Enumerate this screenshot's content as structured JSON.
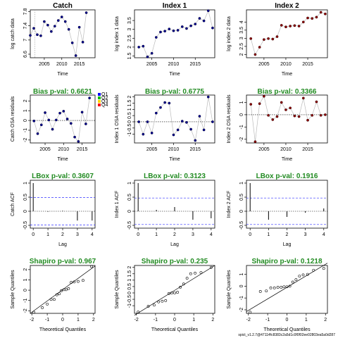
{
  "footer_text": "spict_v1.2.7@47114fc8383c2a5d1c0f0f02ee02803ea5a0d287",
  "chart_data": [
    {
      "type": "line",
      "title": "Catch",
      "xlabel": "Time",
      "ylabel": "log catch data",
      "xlim": [
        2001,
        2019.5
      ],
      "ylim": [
        6.5,
        7.85
      ],
      "xticks": [
        2005,
        2010,
        2015
      ],
      "yticks": [
        6.6,
        7.0,
        7.4,
        7.8
      ],
      "vline": 2002.3,
      "point_color": "#00008b",
      "x": [
        2001,
        2002,
        2003,
        2004,
        2005,
        2006,
        2007,
        2008,
        2009,
        2010,
        2011,
        2012,
        2013,
        2014,
        2015,
        2016,
        2017
      ],
      "y": [
        7.13,
        7.33,
        7.15,
        7.12,
        7.52,
        7.42,
        7.24,
        7.39,
        7.55,
        7.65,
        7.52,
        7.3,
        6.92,
        6.56,
        7.36,
        6.94,
        7.77
      ]
    },
    {
      "type": "line",
      "title": "Index 1",
      "xlabel": "Time",
      "ylabel": "log index 1 data",
      "xlim": [
        2001,
        2019.5
      ],
      "ylim": [
        1.4,
        4.1
      ],
      "xticks": [
        2005,
        2010,
        2015
      ],
      "yticks": [
        1.5,
        2.0,
        2.5,
        3.0,
        3.5
      ],
      "point_color": "#00008b",
      "x": [
        2002,
        2003,
        2004,
        2005,
        2006,
        2007,
        2008,
        2009,
        2010,
        2011,
        2012,
        2013,
        2014,
        2015,
        2016,
        2017,
        2018,
        2019
      ],
      "y": [
        2.0,
        2.05,
        1.45,
        1.65,
        2.55,
        2.85,
        2.9,
        3.02,
        2.92,
        2.95,
        3.15,
        3.05,
        3.2,
        3.3,
        3.62,
        3.48,
        4.05,
        3.08
      ]
    },
    {
      "type": "line",
      "title": "Index 2",
      "xlabel": "Time",
      "ylabel": "log index 2 data",
      "xlim": [
        2001,
        2019.5
      ],
      "ylim": [
        1.8,
        4.75
      ],
      "xticks": [
        2005,
        2010,
        2015
      ],
      "yticks": [
        2.0,
        2.5,
        3.0,
        3.5,
        4.0
      ],
      "point_color": "#8b0000",
      "x": [
        2002,
        2003,
        2004,
        2005,
        2006,
        2007,
        2008,
        2009,
        2010,
        2011,
        2012,
        2013,
        2014,
        2015,
        2016,
        2017,
        2018,
        2019
      ],
      "y": [
        2.98,
        2.0,
        2.45,
        2.92,
        2.98,
        2.95,
        3.1,
        3.8,
        3.7,
        3.75,
        3.78,
        3.75,
        4.0,
        4.25,
        4.22,
        4.3,
        4.6,
        4.5
      ]
    },
    {
      "type": "line",
      "title": "Bias p-val: 0.6621",
      "xlabel": "Time",
      "ylabel": "Catch OSA residuals",
      "xlim": [
        2001,
        2018.5
      ],
      "ylim": [
        -2.3,
        2.6
      ],
      "xticks": [
        2005,
        2010,
        2015
      ],
      "yticks": [
        -2,
        -1,
        0,
        1,
        2
      ],
      "zero_line": true,
      "point_color": "#00008b",
      "legend": {
        "placement": "top-right",
        "labels": [
          "Q1",
          "Q2",
          "Q3",
          "Q4"
        ],
        "colors": [
          "#0000ff",
          "#00c000",
          "#ffd700",
          "#ff0000"
        ]
      },
      "x": [
        2002,
        2003,
        2004,
        2005,
        2006,
        2007,
        2008,
        2009,
        2010,
        2011,
        2012,
        2013,
        2014,
        2015,
        2016,
        2017
      ],
      "y": [
        -0.05,
        -1.35,
        -0.45,
        0.8,
        0.05,
        -0.9,
        0.05,
        0.75,
        0.95,
        0.15,
        -0.3,
        -1.7,
        -2.15,
        0.85,
        -0.35,
        2.3
      ]
    },
    {
      "type": "line",
      "title": "Bias p-val: 0.6775",
      "xlabel": "Time",
      "ylabel": "Index 1 OSA residuals",
      "xlim": [
        2001,
        2019.5
      ],
      "ylim": [
        -1.7,
        2.15
      ],
      "xticks": [
        2005,
        2010,
        2015
      ],
      "yticks": [
        -1.0,
        -0.5,
        0.0,
        0.5,
        1.0,
        1.5,
        2.0
      ],
      "zero_line": true,
      "point_color": "#00008b",
      "x": [
        2002,
        2003,
        2004,
        2005,
        2006,
        2007,
        2008,
        2009,
        2010,
        2011,
        2012,
        2013,
        2014,
        2015,
        2016,
        2017,
        2018,
        2019
      ],
      "y": [
        0.0,
        -1.0,
        0.0,
        -0.9,
        0.7,
        1.15,
        1.55,
        1.5,
        -1.05,
        -0.65,
        0.05,
        -0.05,
        -0.6,
        -1.5,
        0.45,
        -0.65,
        2.0,
        0.0
      ]
    },
    {
      "type": "line",
      "title": "Bias p-val: 0.3366",
      "xlabel": "Time",
      "ylabel": "Index 2 OSA residuals",
      "xlim": [
        2001,
        2019.5
      ],
      "ylim": [
        -2.3,
        1.6
      ],
      "xticks": [
        2005,
        2010,
        2015
      ],
      "yticks": [
        -2,
        -1,
        0,
        1
      ],
      "zero_line": true,
      "point_color": "#8b0000",
      "x": [
        2002,
        2003,
        2004,
        2005,
        2006,
        2007,
        2008,
        2009,
        2010,
        2011,
        2012,
        2013,
        2014,
        2015,
        2016,
        2017,
        2018,
        2019
      ],
      "y": [
        0.85,
        -2.2,
        0.9,
        1.5,
        -0.05,
        -0.4,
        -0.15,
        1.0,
        0.4,
        0.55,
        -0.1,
        -0.15,
        1.35,
        -0.45,
        -0.05,
        1.05,
        -0.05,
        0.0
      ]
    },
    {
      "type": "bar",
      "title": "LBox p-val: 0.3607",
      "xlabel": "Lag",
      "ylabel": "Catch ACF",
      "xlim": [
        -0.2,
        4.2
      ],
      "ylim": [
        -0.6,
        1.1
      ],
      "xticks": [
        0,
        1,
        2,
        3,
        4
      ],
      "yticks": [
        -0.5,
        0.0,
        0.5,
        1.0
      ],
      "conf_band": 0.49,
      "lags": [
        0,
        1,
        2,
        3,
        4
      ],
      "values": [
        1.0,
        -0.02,
        0.02,
        -0.33,
        -0.33
      ]
    },
    {
      "type": "bar",
      "title": "LBox p-val: 0.3123",
      "xlabel": "Lag",
      "ylabel": "Index 1 ACF",
      "xlim": [
        -0.2,
        4.2
      ],
      "ylim": [
        -0.6,
        1.1
      ],
      "xticks": [
        0,
        1,
        2,
        3,
        4
      ],
      "yticks": [
        -0.5,
        0.0,
        0.5,
        1.0
      ],
      "conf_band": 0.47,
      "lags": [
        0,
        1,
        2,
        3,
        4
      ],
      "values": [
        1.0,
        0.05,
        0.15,
        -0.3,
        -0.25
      ]
    },
    {
      "type": "bar",
      "title": "LBox p-val: 0.1916",
      "xlabel": "Lag",
      "ylabel": "Index 2 ACF",
      "xlim": [
        -0.2,
        4.2
      ],
      "ylim": [
        -0.6,
        1.1
      ],
      "xticks": [
        0,
        1,
        2,
        3,
        4
      ],
      "yticks": [
        -0.5,
        0.0,
        0.5,
        1.0
      ],
      "conf_band": 0.47,
      "lags": [
        0,
        1,
        2,
        3,
        4
      ],
      "values": [
        1.0,
        -0.3,
        -0.2,
        -0.05,
        0.1
      ]
    },
    {
      "type": "scatter",
      "title": "Shapiro p-val: 0.967",
      "xlabel": "Theoretical Quantiles",
      "ylabel": "Sample Quantiles",
      "xlim": [
        -2.1,
        2.1
      ],
      "ylim": [
        -2.25,
        2.4
      ],
      "xticks": [
        -2,
        -1,
        0,
        1,
        2
      ],
      "yticks": [
        -2,
        -1,
        0,
        1,
        2
      ],
      "ref_line": [
        [
          -2.1,
          -2.25
        ],
        [
          2.1,
          2.35
        ]
      ],
      "x": [
        -1.87,
        -1.32,
        -1.0,
        -0.75,
        -0.55,
        -0.38,
        -0.22,
        -0.08,
        0.08,
        0.22,
        0.38,
        0.55,
        0.75,
        1.0,
        1.32,
        1.87
      ],
      "y": [
        -2.15,
        -1.7,
        -1.35,
        -0.9,
        -0.9,
        -0.45,
        -0.35,
        -0.05,
        0.05,
        0.05,
        0.15,
        0.75,
        0.8,
        0.85,
        0.95,
        2.3
      ]
    },
    {
      "type": "scatter",
      "title": "Shapiro p-val: 0.235",
      "xlabel": "Theoretical Quantiles",
      "ylabel": "Sample Quantiles",
      "xlim": [
        -2.1,
        2.1
      ],
      "ylim": [
        -1.6,
        2.15
      ],
      "xticks": [
        -2,
        -1,
        0,
        1,
        2
      ],
      "yticks": [
        -1.0,
        -0.5,
        0.0,
        0.5,
        1.0,
        1.5,
        2.0
      ],
      "ref_line": [
        [
          -2.1,
          -1.75
        ],
        [
          2.1,
          2.15
        ]
      ],
      "x": [
        -1.91,
        -1.38,
        -1.07,
        -0.84,
        -0.65,
        -0.47,
        -0.3,
        -0.15,
        0.0,
        0.15,
        0.3,
        0.47,
        0.65,
        0.84,
        1.07,
        1.38,
        1.91
      ],
      "y": [
        -1.5,
        -1.05,
        -0.95,
        -0.7,
        -0.65,
        -0.6,
        -0.05,
        0.0,
        0.0,
        0.05,
        0.45,
        0.7,
        1.15,
        1.5,
        1.55,
        1.6,
        2.0
      ]
    },
    {
      "type": "scatter",
      "title": "Shapiro p-val: 0.1218",
      "xlabel": "Theoretical Quantiles",
      "ylabel": "Sample Quantiles",
      "xlim": [
        -2.1,
        2.1
      ],
      "ylim": [
        -2.3,
        1.75
      ],
      "xticks": [
        -2,
        -1,
        0,
        1,
        2
      ],
      "yticks": [
        -2,
        -1,
        0,
        1
      ],
      "ref_line": [
        [
          -2.1,
          -2.15
        ],
        [
          2.1,
          1.95
        ]
      ],
      "x": [
        -1.91,
        -1.38,
        -1.07,
        -0.84,
        -0.65,
        -0.47,
        -0.3,
        -0.15,
        0.0,
        0.15,
        0.3,
        0.47,
        0.65,
        0.84,
        1.07,
        1.38,
        1.91
      ],
      "y": [
        -2.2,
        -0.45,
        -0.4,
        -0.15,
        -0.15,
        -0.1,
        -0.1,
        -0.05,
        -0.05,
        0.0,
        0.35,
        0.55,
        0.85,
        0.95,
        1.0,
        1.35,
        1.5
      ]
    }
  ]
}
